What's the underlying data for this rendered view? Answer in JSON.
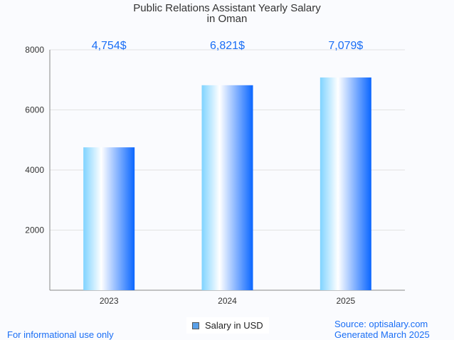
{
  "chart_data": {
    "type": "bar",
    "title": [
      "Public Relations Assistant Yearly Salary",
      "in Oman"
    ],
    "categories": [
      "2023",
      "2024",
      "2025"
    ],
    "values": [
      4754,
      6821,
      7079
    ],
    "data_labels": [
      "4,754$",
      "6,821$",
      "7,079$"
    ],
    "yticks": [
      2000,
      4000,
      6000,
      8000
    ],
    "ylim": [
      0,
      8000
    ],
    "grid": true,
    "legend": {
      "label": "Salary in USD",
      "position": "bottom"
    },
    "colors": {
      "bar_light": "#7fd3ff",
      "bar_mid": "#ffffff",
      "bar_dark": "#0a66ff",
      "label": "#1a6ef5"
    }
  },
  "footer": {
    "left": "For informational use only",
    "source": "Source: optisalary.com",
    "generated": "Generated March 2025"
  }
}
